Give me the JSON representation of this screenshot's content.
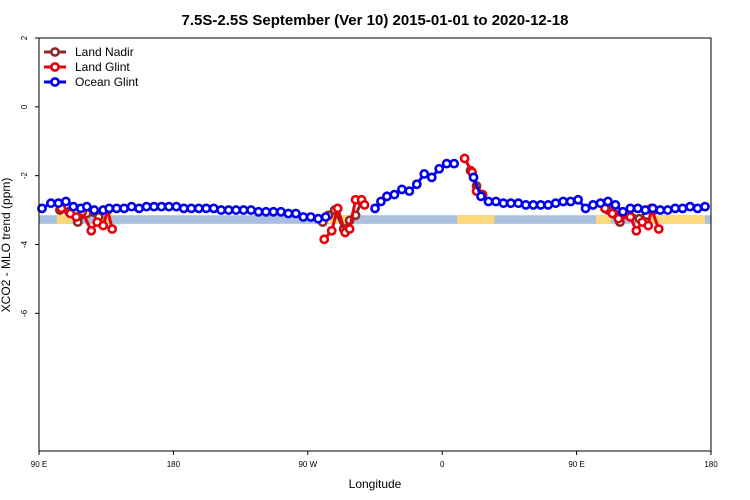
{
  "chart_data": {
    "type": "line",
    "title": "7.5S-2.5S September (Ver 10)   2015-01-01 to 2020-12-18",
    "xlabel": "Longitude",
    "ylabel": "XCO2 - MLO trend (ppm)",
    "xlim": [
      90,
      540
    ],
    "ylim": [
      -10,
      2
    ],
    "x_ticks": [
      {
        "value": 90,
        "label": "90 E"
      },
      {
        "value": 180,
        "label": "180"
      },
      {
        "value": 270,
        "label": "90 W"
      },
      {
        "value": 360,
        "label": "0"
      },
      {
        "value": 450,
        "label": "90 E"
      },
      {
        "value": 540,
        "label": "180"
      }
    ],
    "y_ticks": [
      {
        "value": 2,
        "label": "2"
      },
      {
        "value": 0,
        "label": "0"
      },
      {
        "value": -2,
        "label": "-2"
      },
      {
        "value": -4,
        "label": "-4"
      },
      {
        "value": -6,
        "label": "-6"
      }
    ],
    "grid": false,
    "legend_position": "top-left",
    "surface_band": {
      "y_range": [
        -3.4,
        -3.15
      ],
      "ocean_color": "#a9c0e0",
      "land_color": "#fdd97a",
      "land_ranges": [
        [
          102,
          112
        ],
        [
          131,
          138
        ],
        [
          277,
          298
        ],
        [
          370,
          395
        ],
        [
          463,
          473
        ],
        [
          490,
          536
        ]
      ]
    },
    "series": [
      {
        "name": "Land Nadir",
        "color": "#8b2a2a",
        "segments": [
          [
            [
              104,
              -3.0
            ],
            [
              110,
              -3.05
            ],
            [
              116,
              -3.35
            ],
            [
              122,
              -3.1
            ],
            [
              130,
              -3.2
            ],
            [
              136,
              -3.0
            ]
          ],
          [
            [
              280,
              -3.35
            ],
            [
              284,
              -3.15
            ],
            [
              288,
              -3.0
            ],
            [
              294,
              -3.55
            ],
            [
              298,
              -3.3
            ],
            [
              302,
              -3.15
            ],
            [
              306,
              -2.75
            ]
          ],
          [
            [
              379,
              -1.85
            ],
            [
              383,
              -2.3
            ],
            [
              387,
              -2.55
            ]
          ],
          [
            [
              471,
              -3.0
            ],
            [
              475,
              -3.1
            ],
            [
              479,
              -3.35
            ],
            [
              485,
              -3.05
            ],
            [
              492,
              -3.25
            ],
            [
              497,
              -3.15
            ],
            [
              502,
              -3.0
            ]
          ]
        ]
      },
      {
        "name": "Land Glint",
        "color": "#e8000b",
        "segments": [
          [
            [
              105,
              -2.95
            ],
            [
              111,
              -3.1
            ],
            [
              115,
              -3.2
            ],
            [
              119,
              -3.05
            ],
            [
              125,
              -3.6
            ],
            [
              129,
              -3.35
            ],
            [
              133,
              -3.45
            ],
            [
              136,
              -3.0
            ],
            [
              139,
              -3.55
            ]
          ],
          [
            [
              281,
              -3.85
            ],
            [
              286,
              -3.6
            ],
            [
              290,
              -2.95
            ],
            [
              295,
              -3.65
            ],
            [
              298,
              -3.55
            ],
            [
              302,
              -2.7
            ],
            [
              306,
              -2.7
            ],
            [
              308,
              -2.85
            ]
          ],
          [
            [
              375,
              -1.5
            ],
            [
              380,
              -1.9
            ],
            [
              383,
              -2.45
            ],
            [
              387,
              -2.55
            ]
          ],
          [
            [
              469,
              -2.95
            ],
            [
              474,
              -3.1
            ],
            [
              478,
              -3.25
            ],
            [
              486,
              -3.2
            ],
            [
              490,
              -3.6
            ],
            [
              494,
              -3.35
            ],
            [
              498,
              -3.45
            ],
            [
              500,
              -2.95
            ],
            [
              505,
              -3.55
            ]
          ]
        ]
      },
      {
        "name": "Ocean Glint",
        "color": "#0000ee",
        "segments": [
          [
            [
              92,
              -2.95
            ],
            [
              98,
              -2.8
            ],
            [
              103,
              -2.8
            ],
            [
              108,
              -2.75
            ],
            [
              113,
              -2.9
            ],
            [
              118,
              -2.95
            ],
            [
              122,
              -2.9
            ],
            [
              127,
              -3.0
            ],
            [
              133,
              -3.0
            ],
            [
              137,
              -2.95
            ],
            [
              142,
              -2.95
            ],
            [
              147,
              -2.95
            ],
            [
              152,
              -2.9
            ],
            [
              157,
              -2.95
            ],
            [
              162,
              -2.9
            ],
            [
              167,
              -2.9
            ],
            [
              172,
              -2.9
            ],
            [
              177,
              -2.9
            ],
            [
              182,
              -2.9
            ],
            [
              187,
              -2.95
            ],
            [
              192,
              -2.95
            ],
            [
              197,
              -2.95
            ],
            [
              202,
              -2.95
            ],
            [
              207,
              -2.95
            ],
            [
              212,
              -3.0
            ],
            [
              217,
              -3.0
            ],
            [
              222,
              -3.0
            ],
            [
              227,
              -3.0
            ],
            [
              232,
              -3.0
            ],
            [
              237,
              -3.05
            ],
            [
              242,
              -3.05
            ],
            [
              247,
              -3.05
            ],
            [
              252,
              -3.05
            ],
            [
              257,
              -3.1
            ],
            [
              262,
              -3.1
            ],
            [
              267,
              -3.2
            ],
            [
              272,
              -3.2
            ],
            [
              277,
              -3.25
            ],
            [
              282,
              -3.2
            ]
          ],
          [
            [
              315,
              -2.95
            ],
            [
              319,
              -2.75
            ],
            [
              323,
              -2.6
            ],
            [
              328,
              -2.55
            ],
            [
              333,
              -2.4
            ],
            [
              338,
              -2.45
            ],
            [
              343,
              -2.25
            ],
            [
              348,
              -1.95
            ],
            [
              353,
              -2.05
            ],
            [
              358,
              -1.8
            ],
            [
              363,
              -1.65
            ],
            [
              368,
              -1.65
            ]
          ],
          [
            [
              381,
              -2.05
            ],
            [
              386,
              -2.6
            ],
            [
              391,
              -2.75
            ],
            [
              396,
              -2.75
            ],
            [
              401,
              -2.8
            ],
            [
              406,
              -2.8
            ],
            [
              411,
              -2.8
            ],
            [
              416,
              -2.85
            ],
            [
              421,
              -2.85
            ],
            [
              426,
              -2.85
            ],
            [
              431,
              -2.85
            ],
            [
              436,
              -2.8
            ],
            [
              441,
              -2.75
            ],
            [
              446,
              -2.75
            ],
            [
              451,
              -2.7
            ],
            [
              456,
              -2.95
            ],
            [
              461,
              -2.85
            ],
            [
              466,
              -2.8
            ],
            [
              471,
              -2.75
            ],
            [
              476,
              -2.85
            ],
            [
              481,
              -3.05
            ],
            [
              486,
              -2.95
            ],
            [
              491,
              -2.95
            ],
            [
              496,
              -3.0
            ],
            [
              501,
              -2.95
            ],
            [
              506,
              -3.0
            ],
            [
              511,
              -3.0
            ],
            [
              516,
              -2.95
            ],
            [
              521,
              -2.95
            ],
            [
              526,
              -2.9
            ],
            [
              531,
              -2.95
            ],
            [
              536,
              -2.9
            ]
          ]
        ]
      }
    ]
  }
}
